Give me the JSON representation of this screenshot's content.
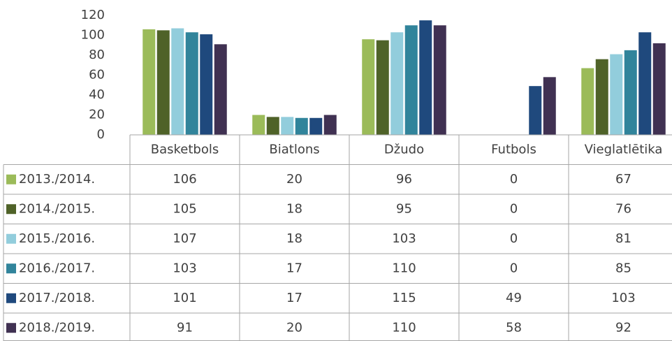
{
  "chart_data": {
    "type": "bar",
    "categories": [
      "Basketbols",
      "Biatlons",
      "Džudo",
      "Futbols",
      "Vieglatlētika"
    ],
    "series": [
      {
        "name": "2013./2014.",
        "color": "#9bbb59",
        "values": [
          106,
          20,
          96,
          0,
          67
        ]
      },
      {
        "name": "2014./2015.",
        "color": "#4f6228",
        "values": [
          105,
          18,
          95,
          0,
          76
        ]
      },
      {
        "name": "2015./2016.",
        "color": "#92cddc",
        "values": [
          107,
          18,
          103,
          0,
          81
        ]
      },
      {
        "name": "2016./2017.",
        "color": "#31849b",
        "values": [
          103,
          17,
          110,
          0,
          85
        ]
      },
      {
        "name": "2017./2018.",
        "color": "#1f497d",
        "values": [
          101,
          17,
          115,
          49,
          103
        ]
      },
      {
        "name": "2018./2019.",
        "color": "#403152",
        "values": [
          91,
          20,
          110,
          58,
          92
        ]
      }
    ],
    "ylim": [
      0,
      120
    ],
    "yticks": [
      0,
      20,
      40,
      60,
      80,
      100,
      120
    ],
    "grid": false
  }
}
